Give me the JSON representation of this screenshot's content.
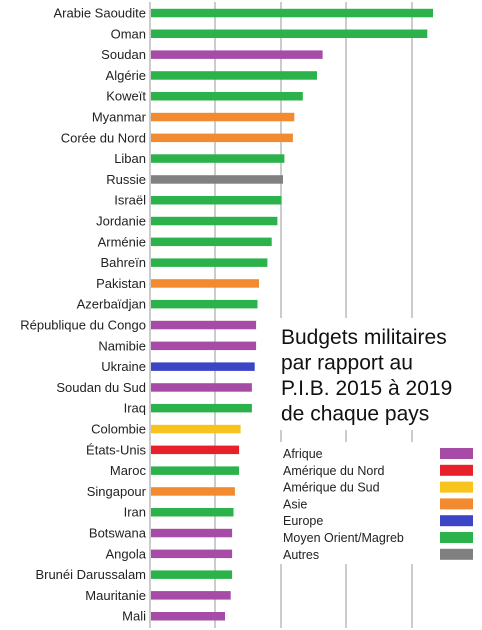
{
  "chart_data": {
    "type": "bar",
    "orientation": "horizontal",
    "title_lines": [
      "Budgets militaires",
      "par rapport au",
      "P.I.B. 2015 à 2019",
      "de chaque pays"
    ],
    "categories": [
      "Arabie Saoudite",
      "Oman",
      "Soudan",
      "Algérie",
      "Koweït",
      "Myanmar",
      "Corée du Nord",
      "Liban",
      "Russie",
      "Israël",
      "Jordanie",
      "Arménie",
      "Bahreïn",
      "Pakistan",
      "Azerbaïdjan",
      "République du Congo",
      "Namibie",
      "Ukraine",
      "Soudan du Sud",
      "Iraq",
      "Colombie",
      "États-Unis",
      "Maroc",
      "Singapour",
      "Iran",
      "Botswana",
      "Angola",
      "Brunéi Darussalam",
      "Mauritanie",
      "Mali"
    ],
    "values": [
      100,
      98,
      61,
      59,
      54,
      51,
      50.5,
      47.5,
      47,
      46.5,
      45,
      43,
      41.5,
      38.5,
      38,
      37.5,
      37.5,
      37,
      36,
      36,
      32,
      31.5,
      31.5,
      30,
      29.5,
      29,
      29,
      29,
      28.5,
      26.5
    ],
    "regions": [
      "Moyen Orient/Magreb",
      "Moyen Orient/Magreb",
      "Afrique",
      "Moyen Orient/Magreb",
      "Moyen Orient/Magreb",
      "Asie",
      "Asie",
      "Moyen Orient/Magreb",
      "Autres",
      "Moyen Orient/Magreb",
      "Moyen Orient/Magreb",
      "Moyen Orient/Magreb",
      "Moyen Orient/Magreb",
      "Asie",
      "Moyen Orient/Magreb",
      "Afrique",
      "Afrique",
      "Europe",
      "Afrique",
      "Moyen Orient/Magreb",
      "Amérique du Sud",
      "Amérique du Nord",
      "Moyen Orient/Magreb",
      "Asie",
      "Moyen Orient/Magreb",
      "Afrique",
      "Afrique",
      "Moyen Orient/Magreb",
      "Afrique",
      "Afrique"
    ],
    "xlim": [
      0,
      100
    ],
    "grid": "vertical",
    "legend": [
      {
        "name": "Afrique",
        "color": "#a64ca6"
      },
      {
        "name": "Amérique du Nord",
        "color": "#e8202a"
      },
      {
        "name": "Amérique du Sud",
        "color": "#f7c31c"
      },
      {
        "name": "Asie",
        "color": "#f28a30"
      },
      {
        "name": "Europe",
        "color": "#3d45c7"
      },
      {
        "name": "Moyen Orient/Magreb",
        "color": "#2bb24a"
      },
      {
        "name": "Autres",
        "color": "#808080"
      }
    ],
    "legend_position": "right"
  }
}
